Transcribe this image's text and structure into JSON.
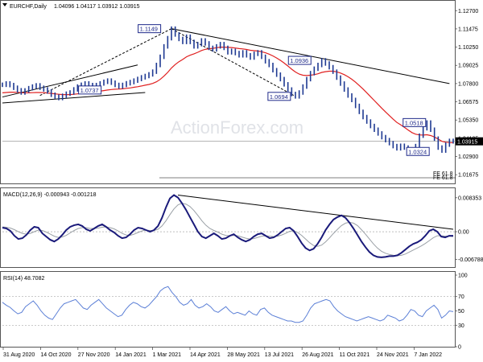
{
  "header": {
    "symbol": "EURCHF,Daily",
    "ohlc": "1.04096 1.04117 1.03912 1.03915"
  },
  "watermark": "ActionForex.com",
  "colors": {
    "price": "#1f3a93",
    "ma": "#e02020",
    "trend": "#000000",
    "macd": "#1a1a7a",
    "signal": "#9aa0a6",
    "rsi": "#5b7fd6",
    "current_price_bg": "#000000"
  },
  "chart_data": [
    {
      "type": "line",
      "title": "EURCHF,Daily",
      "x_ticks": [
        "31 Aug 2020",
        "14 Oct 2020",
        "27 Nov 2020",
        "14 Jan 2021",
        "1 Mar 2021",
        "14 Apr 2021",
        "28 May 2021",
        "13 Jul 2021",
        "26 Aug 2021",
        "11 Oct 2021",
        "24 Nov 2021",
        "7 Jan 2022"
      ],
      "y_ticks": [
        "1.12700",
        "1.11475",
        "1.10250",
        "1.09025",
        "1.07800",
        "1.06575",
        "1.05350",
        "1.04125",
        "1.02900",
        "1.01675"
      ],
      "ylim": [
        1.012,
        1.132
      ],
      "current_price_label": "1.03915",
      "annotations": [
        {
          "label": "1.1149",
          "x": "25 Feb 2021",
          "y": 1.1149
        },
        {
          "label": "1.0737",
          "x": "20 Dec 2020",
          "y": 1.0737
        },
        {
          "label": "1.0936",
          "x": "13 Aug 2021",
          "y": 1.0936
        },
        {
          "label": "1.0694",
          "x": "21 Jul 2021",
          "y": 1.0694
        },
        {
          "label": "1.0518",
          "x": "20 Dec 2021",
          "y": 1.0518
        },
        {
          "label": "1.0324",
          "x": "24 Dec 2021",
          "y": 1.0324
        }
      ],
      "fib_labels": [
        "FE 61.8",
        "FE 61.8"
      ],
      "series": [
        {
          "values": [
            1.0772,
            1.0781,
            1.077,
            1.0752,
            1.0735,
            1.072,
            1.0734,
            1.0749,
            1.076,
            1.0768,
            1.0752,
            1.0741,
            1.0727,
            1.0705,
            1.0692,
            1.0683,
            1.0698,
            1.0712,
            1.072,
            1.0741,
            1.076,
            1.0772,
            1.0781,
            1.077,
            1.0758,
            1.077,
            1.0781,
            1.0792,
            1.08,
            1.0786,
            1.0771,
            1.076,
            1.0771,
            1.0782,
            1.079,
            1.08,
            1.0811,
            1.0822,
            1.0831,
            1.0842,
            1.086,
            1.0905,
            1.096,
            1.103,
            1.1085,
            1.1149,
            1.111,
            1.108,
            1.106,
            1.1095,
            1.106,
            1.103,
            1.1045,
            1.107,
            1.105,
            1.102,
            1.101,
            1.103,
            1.1045,
            1.102,
            1.099,
            1.1,
            1.0985,
            1.097,
            1.099,
            1.097,
            1.0955,
            1.098,
            1.099,
            1.096,
            1.093,
            1.0905,
            1.087,
            1.084,
            1.081,
            1.0775,
            1.074,
            1.071,
            1.0694,
            1.072,
            1.076,
            1.081,
            1.085,
            1.088,
            1.0905,
            1.0936,
            1.0915,
            1.089,
            1.086,
            1.082,
            1.078,
            1.074,
            1.07,
            1.067,
            1.063,
            1.059,
            1.0555,
            1.0525,
            1.0495,
            1.047,
            1.0445,
            1.042,
            1.04,
            1.038,
            1.036,
            1.0345,
            1.0362,
            1.035,
            1.033,
            1.0324,
            1.036,
            1.043,
            1.048,
            1.0518,
            1.047,
            1.041,
            1.035,
            1.033,
            1.037,
            1.0395,
            1.0392
          ]
        },
        {
          "values": [
            1.0718,
            1.072,
            1.0722,
            1.0722,
            1.0721,
            1.0719,
            1.0718,
            1.0718,
            1.0719,
            1.072,
            1.072,
            1.0719,
            1.0717,
            1.0714,
            1.0711,
            1.0708,
            1.0706,
            1.0706,
            1.0706,
            1.0708,
            1.0711,
            1.0714,
            1.0718,
            1.0721,
            1.0723,
            1.0726,
            1.0729,
            1.0733,
            1.0737,
            1.074,
            1.0742,
            1.0743,
            1.0745,
            1.0748,
            1.0751,
            1.0755,
            1.0759,
            1.0764,
            1.0769,
            1.0774,
            1.0781,
            1.0792,
            1.0808,
            1.083,
            1.0855,
            1.0885,
            1.0908,
            1.0927,
            1.0942,
            1.096,
            1.0971,
            1.098,
            1.099,
            1.1002,
            1.101,
            1.1014,
            1.1017,
            1.1021,
            1.1025,
            1.1025,
            1.1023,
            1.1022,
            1.1019,
            1.1015,
            1.1013,
            1.1009,
            1.1004,
            1.1001,
            1.0999,
            1.0994,
            1.0987,
            1.0978,
            1.0966,
            1.0952,
            1.0936,
            1.0918,
            1.0898,
            1.0877,
            1.0858,
            1.0844,
            1.0836,
            1.0834,
            1.0836,
            1.084,
            1.0846,
            1.0855,
            1.086,
            1.0863,
            1.0863,
            1.0859,
            1.0851,
            1.084,
            1.0826,
            1.0809,
            1.0789,
            1.0767,
            1.0743,
            1.0718,
            1.0692,
            1.0666,
            1.064,
            1.0614,
            1.0589,
            1.0565,
            1.0541,
            1.0519,
            1.0503,
            1.0486,
            1.0468,
            1.0451,
            1.044,
            1.0435,
            1.0434,
            1.0436,
            1.0431,
            1.0421,
            1.0407,
            1.0392,
            1.0386,
            1.0384,
            1.0382
          ]
        }
      ]
    },
    {
      "type": "line",
      "title": "MACD(12,26,9) -0.000943 -0.001218",
      "y_ticks": [
        "0.008353",
        "0.00",
        "-0.006788"
      ],
      "ylim": [
        -0.0085,
        0.0095
      ],
      "series": [
        {
          "name": "MACD",
          "values": [
            0.001,
            0.0008,
            0.0002,
            -0.001,
            -0.0018,
            -0.0016,
            -0.0008,
            0.0004,
            0.0012,
            0.001,
            -0.0004,
            -0.0012,
            -0.002,
            -0.0024,
            -0.0018,
            -0.0008,
            0.0004,
            0.0012,
            0.0016,
            0.0018,
            0.0014,
            0.0006,
            0.0002,
            0.0008,
            0.0014,
            0.0018,
            0.0012,
            0.0004,
            -0.0002,
            -0.001,
            -0.0016,
            -0.0014,
            -0.0006,
            0.0004,
            0.001,
            0.0008,
            0.0004,
            0.0,
            0.0004,
            0.0014,
            0.0034,
            0.006,
            0.0082,
            0.009,
            0.0084,
            0.007,
            0.0054,
            0.0036,
            0.0018,
            0.0,
            -0.0012,
            -0.0016,
            -0.001,
            -0.0004,
            -0.001,
            -0.0018,
            -0.0016,
            -0.001,
            -0.0006,
            -0.0014,
            -0.002,
            -0.0024,
            -0.002,
            -0.0012,
            -0.0006,
            -0.0004,
            -0.001,
            -0.0016,
            -0.0014,
            -0.0008,
            0.0,
            0.0008,
            0.001,
            0.0002,
            -0.0012,
            -0.0028,
            -0.004,
            -0.0046,
            -0.0042,
            -0.003,
            -0.0014,
            0.0004,
            0.0018,
            0.003,
            0.0036,
            0.004,
            0.0034,
            0.0022,
            0.0008,
            -0.0008,
            -0.0024,
            -0.0038,
            -0.005,
            -0.0058,
            -0.0062,
            -0.0063,
            -0.0062,
            -0.006,
            -0.006,
            -0.0058,
            -0.0052,
            -0.0044,
            -0.0036,
            -0.003,
            -0.0026,
            -0.002,
            -0.001,
            0.0002,
            0.0006,
            0.0,
            -0.0012,
            -0.0014,
            -0.001,
            -0.001
          ]
        },
        {
          "name": "Signal",
          "values": [
            0.0012,
            0.0011,
            0.0009,
            0.0005,
            0.0,
            -0.0004,
            -0.0006,
            -0.0004,
            0.0,
            0.0004,
            0.0003,
            -0.0001,
            -0.0006,
            -0.0011,
            -0.0014,
            -0.0013,
            -0.0009,
            -0.0003,
            0.0003,
            0.0008,
            0.001,
            0.001,
            0.0008,
            0.0008,
            0.0009,
            0.0011,
            0.0012,
            0.001,
            0.0007,
            0.0002,
            -0.0004,
            -0.0008,
            -0.0009,
            -0.0006,
            -0.0002,
            0.0002,
            0.0004,
            0.0003,
            0.0003,
            0.0006,
            0.0014,
            0.0027,
            0.0042,
            0.0056,
            0.0066,
            0.007,
            0.0068,
            0.0062,
            0.0052,
            0.004,
            0.0027,
            0.0016,
            0.0008,
            0.0003,
            -0.0001,
            -0.0006,
            -0.0009,
            -0.001,
            -0.0009,
            -0.001,
            -0.0013,
            -0.0016,
            -0.0018,
            -0.0017,
            -0.0014,
            -0.0011,
            -0.001,
            -0.0011,
            -0.0012,
            -0.0011,
            -0.0008,
            -0.0004,
            0.0001,
            0.0002,
            -0.0002,
            -0.0009,
            -0.0018,
            -0.0027,
            -0.0034,
            -0.0036,
            -0.0033,
            -0.0025,
            -0.0015,
            -0.0004,
            0.0006,
            0.0015,
            0.0021,
            0.0023,
            0.0021,
            0.0015,
            0.0005,
            -0.0006,
            -0.0018,
            -0.003,
            -0.004,
            -0.0048,
            -0.0053,
            -0.0056,
            -0.0058,
            -0.0059,
            -0.0058,
            -0.0055,
            -0.005,
            -0.0045,
            -0.004,
            -0.0035,
            -0.0029,
            -0.0022,
            -0.0015,
            -0.001,
            -0.001,
            -0.0011,
            -0.0011,
            -0.0012
          ]
        }
      ]
    },
    {
      "type": "line",
      "title": "RSI(14) 48.7082",
      "y_ticks": [
        "100",
        "70",
        "50",
        "30",
        "0"
      ],
      "ylim": [
        0,
        100
      ],
      "series": [
        {
          "values": [
            62,
            58,
            55,
            50,
            46,
            48,
            56,
            60,
            64,
            58,
            50,
            44,
            40,
            38,
            46,
            54,
            60,
            62,
            64,
            66,
            60,
            54,
            52,
            58,
            62,
            66,
            60,
            54,
            50,
            46,
            42,
            44,
            52,
            58,
            62,
            60,
            56,
            54,
            58,
            64,
            70,
            78,
            82,
            84,
            76,
            70,
            62,
            58,
            60,
            66,
            58,
            54,
            56,
            60,
            56,
            50,
            48,
            52,
            56,
            50,
            46,
            48,
            46,
            44,
            50,
            46,
            44,
            52,
            54,
            48,
            44,
            42,
            40,
            38,
            36,
            36,
            34,
            34,
            36,
            44,
            54,
            60,
            62,
            64,
            66,
            64,
            56,
            50,
            46,
            42,
            40,
            38,
            36,
            38,
            40,
            42,
            40,
            38,
            36,
            38,
            44,
            42,
            40,
            36,
            38,
            44,
            52,
            50,
            44,
            42,
            50,
            54,
            58,
            52,
            40,
            44,
            50,
            49
          ]
        }
      ]
    }
  ]
}
